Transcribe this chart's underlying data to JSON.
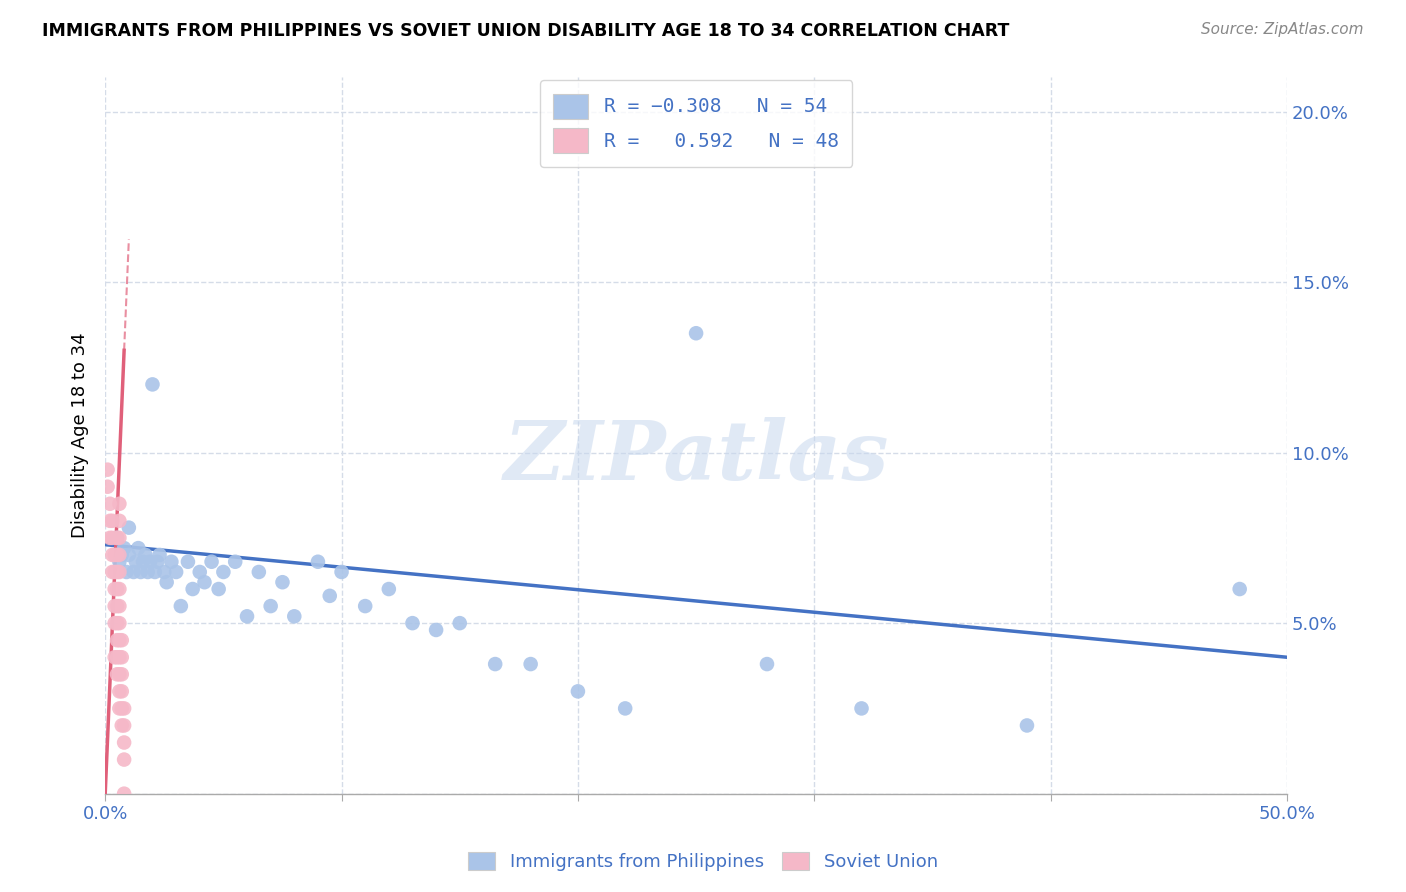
{
  "title": "IMMIGRANTS FROM PHILIPPINES VS SOVIET UNION DISABILITY AGE 18 TO 34 CORRELATION CHART",
  "source": "Source: ZipAtlas.com",
  "ylabel": "Disability Age 18 to 34",
  "xlim": [
    0.0,
    0.5
  ],
  "ylim": [
    0.0,
    0.21
  ],
  "philippines_color": "#aac4e8",
  "soviet_color": "#f5b8c8",
  "philippines_line_color": "#4472c4",
  "soviet_line_color": "#e0607a",
  "R_philippines": -0.308,
  "N_philippines": 54,
  "R_soviet": 0.592,
  "N_soviet": 48,
  "philippines_x": [
    0.005,
    0.006,
    0.007,
    0.008,
    0.009,
    0.01,
    0.01,
    0.012,
    0.013,
    0.014,
    0.015,
    0.016,
    0.017,
    0.018,
    0.019,
    0.02,
    0.021,
    0.022,
    0.023,
    0.025,
    0.026,
    0.028,
    0.03,
    0.032,
    0.035,
    0.037,
    0.04,
    0.042,
    0.045,
    0.048,
    0.05,
    0.055,
    0.06,
    0.065,
    0.07,
    0.075,
    0.08,
    0.09,
    0.095,
    0.1,
    0.11,
    0.12,
    0.13,
    0.14,
    0.15,
    0.165,
    0.18,
    0.2,
    0.22,
    0.25,
    0.28,
    0.32,
    0.39,
    0.48
  ],
  "philippines_y": [
    0.075,
    0.068,
    0.07,
    0.072,
    0.065,
    0.07,
    0.078,
    0.065,
    0.068,
    0.072,
    0.065,
    0.068,
    0.07,
    0.065,
    0.068,
    0.12,
    0.065,
    0.068,
    0.07,
    0.065,
    0.062,
    0.068,
    0.065,
    0.055,
    0.068,
    0.06,
    0.065,
    0.062,
    0.068,
    0.06,
    0.065,
    0.068,
    0.052,
    0.065,
    0.055,
    0.062,
    0.052,
    0.068,
    0.058,
    0.065,
    0.055,
    0.06,
    0.05,
    0.048,
    0.05,
    0.038,
    0.038,
    0.03,
    0.025,
    0.135,
    0.038,
    0.025,
    0.02,
    0.06
  ],
  "soviet_x": [
    0.001,
    0.001,
    0.002,
    0.002,
    0.002,
    0.003,
    0.003,
    0.003,
    0.003,
    0.004,
    0.004,
    0.004,
    0.004,
    0.004,
    0.004,
    0.005,
    0.005,
    0.005,
    0.005,
    0.005,
    0.005,
    0.005,
    0.005,
    0.005,
    0.006,
    0.006,
    0.006,
    0.006,
    0.006,
    0.006,
    0.006,
    0.006,
    0.006,
    0.006,
    0.006,
    0.006,
    0.006,
    0.007,
    0.007,
    0.007,
    0.007,
    0.007,
    0.007,
    0.008,
    0.008,
    0.008,
    0.008,
    0.008
  ],
  "soviet_y": [
    0.09,
    0.095,
    0.075,
    0.08,
    0.085,
    0.065,
    0.07,
    0.075,
    0.08,
    0.04,
    0.05,
    0.055,
    0.06,
    0.065,
    0.07,
    0.035,
    0.04,
    0.045,
    0.05,
    0.055,
    0.06,
    0.065,
    0.07,
    0.075,
    0.025,
    0.03,
    0.035,
    0.04,
    0.045,
    0.05,
    0.055,
    0.06,
    0.065,
    0.07,
    0.075,
    0.08,
    0.085,
    0.02,
    0.025,
    0.03,
    0.035,
    0.04,
    0.045,
    0.01,
    0.015,
    0.02,
    0.025,
    0.0
  ],
  "watermark": "ZIPatlas",
  "phil_trend_x0": 0.0,
  "phil_trend_y0": 0.073,
  "phil_trend_x1": 0.5,
  "phil_trend_y1": 0.04,
  "sov_trend_x0": 0.0,
  "sov_trend_y0": 0.0,
  "sov_trend_x1": 0.008,
  "sov_trend_y1": 0.13
}
